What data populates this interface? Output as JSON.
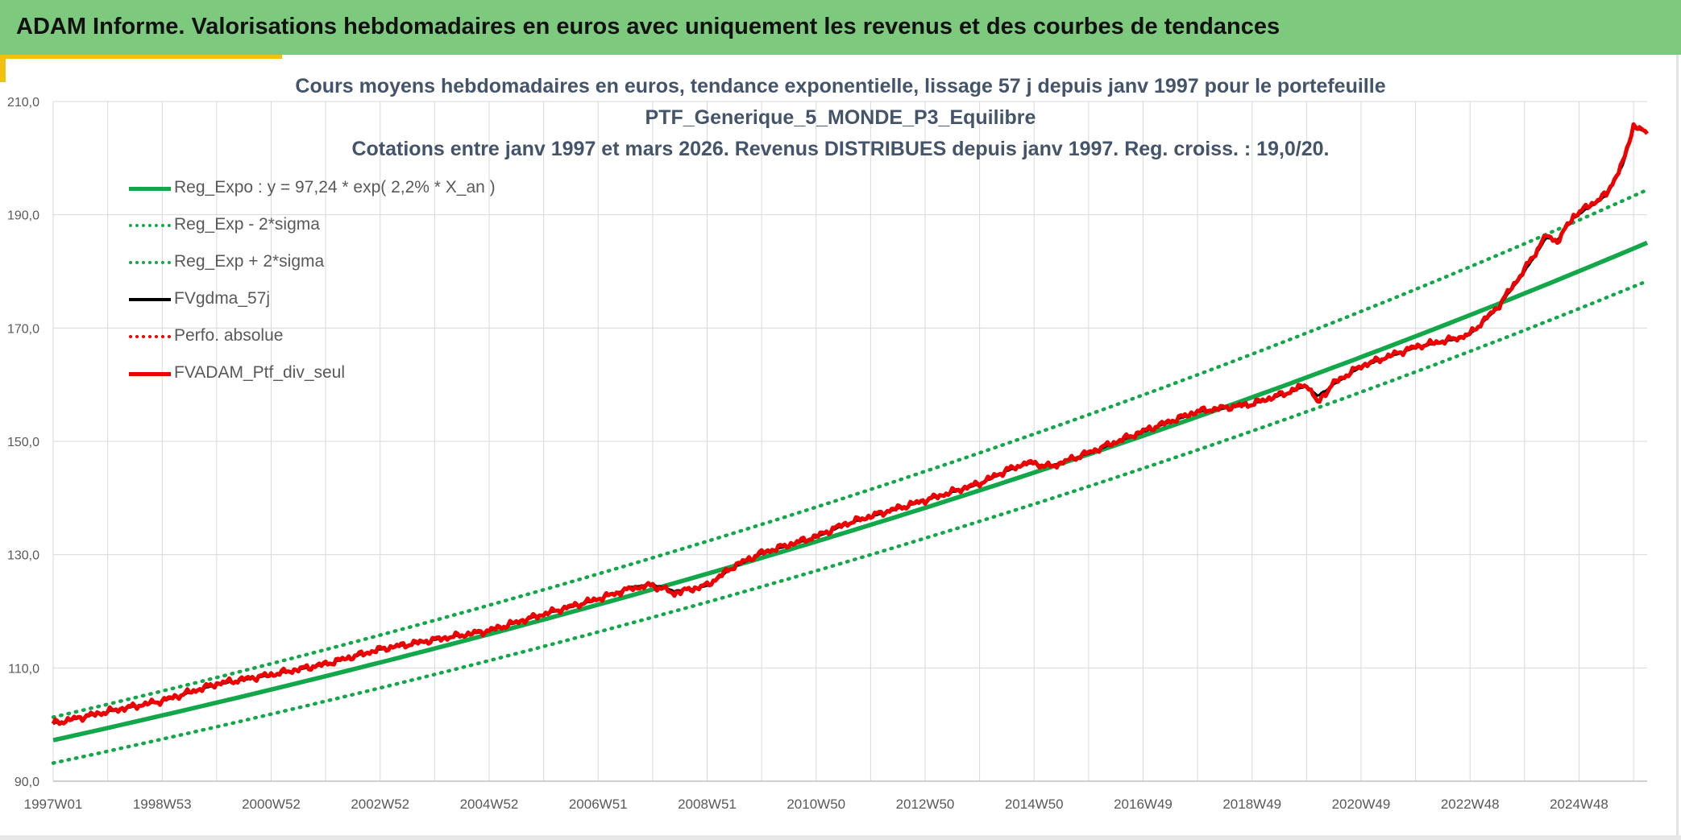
{
  "header": {
    "title": "ADAM Informe. Valorisations hebdomadaires en euros avec uniquement les revenus et des courbes de tendances"
  },
  "colors": {
    "header_bg": "#7dc97d",
    "accent": "#f2c10f",
    "reg": "#12a84a",
    "fv57": "#000000",
    "ptf": "#ee0000",
    "grid": "#d9d9d9"
  },
  "chart_data": {
    "type": "line",
    "title_lines": [
      "Cours moyens hebdomadaires en euros, tendance exponentielle, lissage 57 j depuis janv 1997 pour le portefeuille",
      "PTF_Generique_5_MONDE_P3_Equilibre",
      "Cotations entre janv 1997 et mars 2026. Revenus DISTRIBUES depuis janv 1997. Reg. croiss. : 19,0/20."
    ],
    "x_tick_labels": [
      "1997W01",
      "1998W53",
      "2000W52",
      "2002W52",
      "2004W52",
      "2006W51",
      "2008W51",
      "2010W50",
      "2012W50",
      "2014W50",
      "2016W49",
      "2018W49",
      "2020W49",
      "2022W48",
      "2024W48"
    ],
    "x_tick_years": [
      1997.0,
      1999.0,
      2001.0,
      2003.0,
      2005.0,
      2007.0,
      2009.0,
      2011.0,
      2013.0,
      2015.0,
      2017.0,
      2019.0,
      2021.0,
      2023.0,
      2025.0
    ],
    "x_range_years": [
      1997.0,
      2026.25
    ],
    "y_tick_labels": [
      "90,0",
      "110,0",
      "130,0",
      "150,0",
      "170,0",
      "190,0",
      "210,0"
    ],
    "ylim": [
      90,
      210
    ],
    "grid": true,
    "legend_position": "top-left",
    "legend": [
      {
        "label": "Reg_Expo : y = 97,24 * exp( 2,2% *  X_an )",
        "style": "solid-thick",
        "color": "#12a84a"
      },
      {
        "label": "Reg_Exp - 2*sigma",
        "style": "dotted",
        "color": "#12a84a"
      },
      {
        "label": "Reg_Exp + 2*sigma",
        "style": "dotted",
        "color": "#12a84a"
      },
      {
        "label": "FVgdma_57j",
        "style": "solid",
        "color": "#000000"
      },
      {
        "label": "Perfo. absolue",
        "style": "dotted",
        "color": "#ee0000"
      },
      {
        "label": "FVADAM_Ptf_div_seul",
        "style": "solid-thick",
        "color": "#ee0000"
      }
    ],
    "regression": {
      "a": 97.24,
      "rate": 0.022,
      "x0_year": 1997.0
    },
    "band_minus_2sigma": {
      "x": [
        1997.0,
        2026.25
      ],
      "y": [
        93.2,
        178.3
      ]
    },
    "band_plus_2sigma": {
      "x": [
        1997.0,
        2026.25
      ],
      "y": [
        101.3,
        194.4
      ]
    },
    "series_ptf": {
      "name": "FVADAM_Ptf_div_seul",
      "x": [
        1997.0,
        1998.0,
        1999.0,
        2000.0,
        2001.0,
        2002.0,
        2003.0,
        2004.0,
        2005.0,
        2006.0,
        2007.0,
        2007.6,
        2008.0,
        2008.4,
        2009.0,
        2009.5,
        2010.0,
        2011.0,
        2011.5,
        2012.0,
        2013.0,
        2014.0,
        2014.5,
        2014.9,
        2015.3,
        2016.0,
        2017.0,
        2018.0,
        2019.0,
        2019.7,
        2020.0,
        2020.2,
        2020.5,
        2021.0,
        2022.0,
        2022.8,
        2023.0,
        2023.5,
        2024.0,
        2024.4,
        2024.6,
        2024.9,
        2025.5,
        2025.8,
        2026.0,
        2026.25
      ],
      "y": [
        100.2,
        102.3,
        104.2,
        107.2,
        108.8,
        110.7,
        113.3,
        115.0,
        116.6,
        119.5,
        122.2,
        124.0,
        124.6,
        123.2,
        124.6,
        128.0,
        130.3,
        133.2,
        135.3,
        136.8,
        139.6,
        142.6,
        144.9,
        146.3,
        145.5,
        148.0,
        151.8,
        155.3,
        156.6,
        158.8,
        160.1,
        156.8,
        160.3,
        163.3,
        166.7,
        168.3,
        169.0,
        173.6,
        180.3,
        186.4,
        185.2,
        189.8,
        193.6,
        199.0,
        205.8,
        204.3
      ]
    },
    "series_fv57": {
      "name": "FVgdma_57j",
      "x": [
        1997.0,
        1998.0,
        1999.0,
        2000.0,
        2001.0,
        2002.0,
        2003.0,
        2004.0,
        2005.0,
        2006.0,
        2007.0,
        2007.6,
        2008.0,
        2008.4,
        2009.0,
        2009.5,
        2010.0,
        2011.0,
        2011.5,
        2012.0,
        2013.0,
        2014.0,
        2014.5,
        2014.9,
        2015.3,
        2016.0,
        2017.0,
        2018.0,
        2019.0,
        2019.7,
        2020.0,
        2020.2,
        2020.5,
        2021.0,
        2022.0,
        2022.8,
        2023.0,
        2023.5,
        2024.0,
        2024.4,
        2024.6,
        2024.9,
        2025.5,
        2025.8,
        2026.0,
        2026.25
      ],
      "y": [
        100.1,
        102.2,
        104.1,
        107.0,
        108.7,
        110.6,
        113.2,
        114.9,
        116.5,
        119.4,
        122.0,
        124.3,
        124.8,
        123.6,
        124.4,
        127.8,
        130.1,
        133.0,
        135.1,
        136.6,
        139.5,
        142.4,
        144.7,
        146.1,
        145.7,
        147.8,
        151.6,
        155.1,
        156.5,
        158.6,
        159.8,
        158.0,
        160.0,
        163.1,
        166.5,
        168.1,
        168.8,
        173.4,
        179.9,
        185.9,
        185.6,
        189.4,
        193.3,
        198.6,
        205.3,
        204.6
      ]
    }
  }
}
